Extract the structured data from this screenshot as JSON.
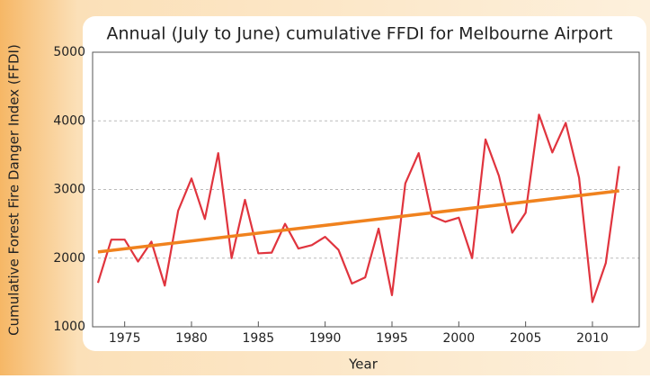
{
  "chart_data": {
    "type": "line",
    "title": "Annual (July to June) cumulative FFDI for Melbourne Airport",
    "xlabel": "Year",
    "ylabel": "Cumulative Forest Fire Danger Index (FFDI)",
    "x": [
      1973,
      1974,
      1975,
      1976,
      1977,
      1978,
      1979,
      1980,
      1981,
      1982,
      1983,
      1984,
      1985,
      1986,
      1987,
      1988,
      1989,
      1990,
      1991,
      1992,
      1993,
      1994,
      1995,
      1996,
      1997,
      1998,
      1999,
      2000,
      2001,
      2002,
      2003,
      2004,
      2005,
      2006,
      2007,
      2008,
      2009,
      2010,
      2011,
      2012
    ],
    "series": [
      {
        "color": "#e0343e",
        "values": [
          1640,
          2270,
          2270,
          1950,
          2240,
          1600,
          2690,
          3160,
          2570,
          3530,
          2000,
          2850,
          2070,
          2080,
          2500,
          2140,
          2190,
          2310,
          2120,
          1630,
          1720,
          2430,
          1460,
          3090,
          3530,
          2610,
          2530,
          2590,
          2000,
          3730,
          3200,
          2370,
          2660,
          4090,
          3540,
          3970,
          3170,
          1360,
          1930,
          3340
        ]
      }
    ],
    "trend": {
      "color": "#f0821e",
      "x": [
        1973,
        2012
      ],
      "values": [
        2090,
        2980
      ]
    },
    "xlim": [
      1972.6,
      2013.5
    ],
    "ylim": [
      1000,
      5000
    ],
    "xticks": [
      1975,
      1980,
      1985,
      1990,
      1995,
      2000,
      2005,
      2010
    ],
    "yticks": [
      1000,
      2000,
      3000,
      4000,
      5000
    ],
    "grid": true
  }
}
